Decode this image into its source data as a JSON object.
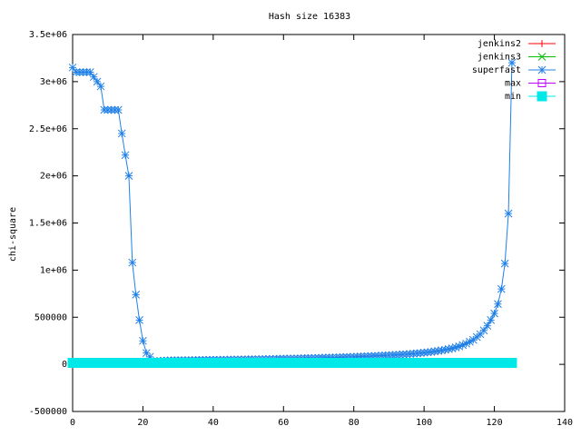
{
  "chart_data": {
    "type": "line",
    "title": "Hash size 16383",
    "y_label": "chi-square",
    "xlim": [
      0,
      140
    ],
    "xticks": [
      0,
      20,
      40,
      60,
      80,
      100,
      120,
      140
    ],
    "ylim": [
      -500000,
      3500000
    ],
    "yticks": [
      -500000,
      0,
      500000,
      {
        "value": 1000000,
        "label": "1e+06"
      },
      {
        "value": 1500000,
        "label": "1.5e+06"
      },
      {
        "value": 2000000,
        "label": "2e+06"
      },
      {
        "value": 2500000,
        "label": "2.5e+06"
      },
      {
        "value": 3000000,
        "label": "3e+06"
      },
      {
        "value": 3500000,
        "label": "3.5e+06"
      }
    ],
    "legend": "top-right",
    "x": [
      0,
      1,
      2,
      3,
      4,
      5,
      6,
      7,
      8,
      9,
      10,
      11,
      12,
      13,
      14,
      15,
      16,
      17,
      18,
      19,
      20,
      21,
      22,
      23,
      24,
      25,
      26,
      27,
      28,
      29,
      30,
      31,
      32,
      33,
      34,
      35,
      36,
      37,
      38,
      39,
      40,
      41,
      42,
      43,
      44,
      45,
      46,
      47,
      48,
      49,
      50,
      51,
      52,
      53,
      54,
      55,
      56,
      57,
      58,
      59,
      60,
      61,
      62,
      63,
      64,
      65,
      66,
      67,
      68,
      69,
      70,
      71,
      72,
      73,
      74,
      75,
      76,
      77,
      78,
      79,
      80,
      81,
      82,
      83,
      84,
      85,
      86,
      87,
      88,
      89,
      90,
      91,
      92,
      93,
      94,
      95,
      96,
      97,
      98,
      99,
      100,
      101,
      102,
      103,
      104,
      105,
      106,
      107,
      108,
      109,
      110,
      111,
      112,
      113,
      114,
      115,
      116,
      117,
      118,
      119,
      120,
      121,
      122,
      123,
      124,
      125
    ],
    "series": [
      {
        "name": "jenkins2",
        "color": "#ff0000",
        "marker": "plus",
        "values": [
          16400,
          16400,
          16400,
          16400,
          16400,
          16400,
          16400,
          16400,
          16400,
          16400,
          16400,
          16400,
          16400,
          16400,
          16400,
          16400,
          16400,
          16400,
          16400,
          16400,
          16400,
          16400,
          16400,
          16400,
          16400,
          16400,
          16400,
          16400,
          16400,
          16400,
          16400,
          16400,
          16400,
          16400,
          16400,
          16400,
          16400,
          16400,
          16400,
          16400,
          16400,
          16400,
          16400,
          16400,
          16400,
          16400,
          16400,
          16400,
          16400,
          16400,
          16400,
          16400,
          16400,
          16400,
          16400,
          16400,
          16400,
          16400,
          16400,
          16400,
          16400,
          16400,
          16400,
          16400,
          16400,
          16400,
          16400,
          16400,
          16400,
          16400,
          16400,
          16400,
          16400,
          16400,
          16400,
          16400,
          16400,
          16400,
          16400,
          16400,
          16400,
          16400,
          16400,
          16400,
          16400,
          16400,
          16400,
          16400,
          16400,
          16400,
          16400,
          16400,
          16400,
          16400,
          16400,
          16400,
          16400,
          16400,
          16400,
          16400,
          16400,
          16400,
          16400,
          16400,
          16400,
          16400,
          16400,
          16400,
          16400,
          16400,
          16400,
          16400,
          16400,
          16400,
          16400,
          16400,
          16400,
          16400,
          16400,
          16400,
          16400,
          16400,
          16400,
          16400,
          16400,
          16400
        ]
      },
      {
        "name": "jenkins3",
        "color": "#00c000",
        "marker": "cross",
        "values": [
          16400,
          16400,
          16400,
          16400,
          16400,
          16400,
          16400,
          16400,
          16400,
          16400,
          16400,
          16400,
          16400,
          16400,
          16400,
          16400,
          16400,
          16400,
          16400,
          16400,
          16400,
          16400,
          16400,
          16400,
          16400,
          16400,
          16400,
          16400,
          16400,
          16400,
          16400,
          16400,
          16400,
          16400,
          16400,
          16400,
          16400,
          16400,
          16400,
          16400,
          16400,
          16400,
          16400,
          16400,
          16400,
          16400,
          16400,
          16400,
          16400,
          16400,
          16400,
          16400,
          16400,
          16400,
          16400,
          16400,
          16400,
          16400,
          16400,
          16400,
          16400,
          16400,
          16400,
          16400,
          16400,
          16400,
          16400,
          16400,
          16400,
          16400,
          16400,
          16400,
          16400,
          16400,
          16400,
          16400,
          16400,
          16400,
          16400,
          16400,
          16400,
          16400,
          16400,
          16400,
          16400,
          16400,
          16400,
          16400,
          16400,
          16400,
          16400,
          16400,
          16400,
          16400,
          16400,
          16400,
          16400,
          16400,
          16400,
          16400,
          16400,
          16400,
          16400,
          16400,
          16400,
          16400,
          16400,
          16400,
          16400,
          16400,
          16400,
          16400,
          16400,
          16400,
          16400,
          16400,
          16400,
          16400,
          16400,
          16400,
          16400,
          16400,
          16400,
          16400,
          16400,
          16400
        ]
      },
      {
        "name": "superfast",
        "color": "#2080e8",
        "marker": "star",
        "values": [
          3150000,
          3100000,
          3100000,
          3100000,
          3100000,
          3100000,
          3050000,
          3000000,
          2950000,
          2700000,
          2700000,
          2700000,
          2700000,
          2700000,
          2450000,
          2220000,
          2000000,
          1080000,
          740000,
          470000,
          250000,
          120000,
          80000,
          30000,
          35000,
          38000,
          40000,
          41000,
          42000,
          43000,
          43000,
          44000,
          44000,
          45000,
          45000,
          46000,
          46000,
          47000,
          47000,
          48000,
          48000,
          49000,
          49000,
          50000,
          50000,
          51000,
          51000,
          52000,
          52000,
          53000,
          53000,
          54000,
          54000,
          55000,
          56000,
          56000,
          57000,
          57000,
          58000,
          59000,
          60000,
          61000,
          62000,
          62000,
          63000,
          64000,
          65000,
          66000,
          67000,
          68000,
          69000,
          70000,
          71000,
          72000,
          73000,
          74000,
          75000,
          76000,
          78000,
          79000,
          80000,
          82000,
          83000,
          85000,
          86000,
          88000,
          90000,
          91000,
          93000,
          95000,
          97000,
          99000,
          101000,
          103000,
          106000,
          108000,
          111000,
          114000,
          117000,
          120000,
          124000,
          128000,
          132000,
          137000,
          142000,
          148000,
          155000,
          162000,
          170000,
          180000,
          190000,
          205000,
          220000,
          240000,
          260000,
          290000,
          320000,
          360000,
          410000,
          470000,
          540000,
          640000,
          800000,
          1070000,
          1600000,
          3200000
        ]
      },
      {
        "name": "max",
        "color": "#c000ff",
        "marker": "square",
        "values": [
          17000,
          17000,
          17000,
          17000,
          17000,
          17000,
          17000,
          17000,
          17000,
          17000,
          17000,
          17000,
          17000,
          17000,
          17000,
          17000,
          17000,
          17000,
          17000,
          17000,
          17000,
          17000,
          17000,
          17000,
          17000,
          17000,
          17000,
          17000,
          17000,
          17000,
          17000,
          17000,
          17000,
          17000,
          17000,
          17000,
          17000,
          17000,
          17000,
          17000,
          17000,
          17000,
          17000,
          17000,
          17000,
          17000,
          17000,
          17000,
          17000,
          17000,
          17000,
          17000,
          17000,
          17000,
          17000,
          17000,
          17000,
          17000,
          17000,
          17000,
          17000,
          17000,
          17000,
          17000,
          17000,
          17000,
          17000,
          17000,
          17000,
          17000,
          17000,
          17000,
          17000,
          17000,
          17000,
          17000,
          17000,
          17000,
          17000,
          17000,
          17000,
          17000,
          17000,
          17000,
          17000,
          17000,
          17000,
          17000,
          17000,
          17000,
          17000,
          17000,
          17000,
          17000,
          17000,
          17000,
          17000,
          17000,
          17000,
          17000,
          17000,
          17000,
          17000,
          17000,
          17000,
          17000,
          17000,
          17000,
          17000,
          17000,
          17000,
          17000,
          17000,
          17000,
          17000,
          17000,
          17000,
          17000,
          17000,
          17000,
          17000,
          17000,
          17000,
          17000,
          17000,
          17000
        ]
      },
      {
        "name": "min",
        "color": "#00e8e8",
        "marker": "filled-square",
        "values": [
          15800,
          15800,
          15800,
          15800,
          15800,
          15800,
          15800,
          15800,
          15800,
          15800,
          15800,
          15800,
          15800,
          15800,
          15800,
          15800,
          15800,
          15800,
          15800,
          15800,
          15800,
          15800,
          15800,
          15800,
          15800,
          15800,
          15800,
          15800,
          15800,
          15800,
          15800,
          15800,
          15800,
          15800,
          15800,
          15800,
          15800,
          15800,
          15800,
          15800,
          15800,
          15800,
          15800,
          15800,
          15800,
          15800,
          15800,
          15800,
          15800,
          15800,
          15800,
          15800,
          15800,
          15800,
          15800,
          15800,
          15800,
          15800,
          15800,
          15800,
          15800,
          15800,
          15800,
          15800,
          15800,
          15800,
          15800,
          15800,
          15800,
          15800,
          15800,
          15800,
          15800,
          15800,
          15800,
          15800,
          15800,
          15800,
          15800,
          15800,
          15800,
          15800,
          15800,
          15800,
          15800,
          15800,
          15800,
          15800,
          15800,
          15800,
          15800,
          15800,
          15800,
          15800,
          15800,
          15800,
          15800,
          15800,
          15800,
          15800,
          15800,
          15800,
          15800,
          15800,
          15800,
          15800,
          15800,
          15800,
          15800,
          15800,
          15800,
          15800,
          15800,
          15800,
          15800,
          15800,
          15800,
          15800,
          15800,
          15800,
          15800,
          15800,
          15800,
          15800,
          15800,
          15800
        ]
      }
    ]
  }
}
